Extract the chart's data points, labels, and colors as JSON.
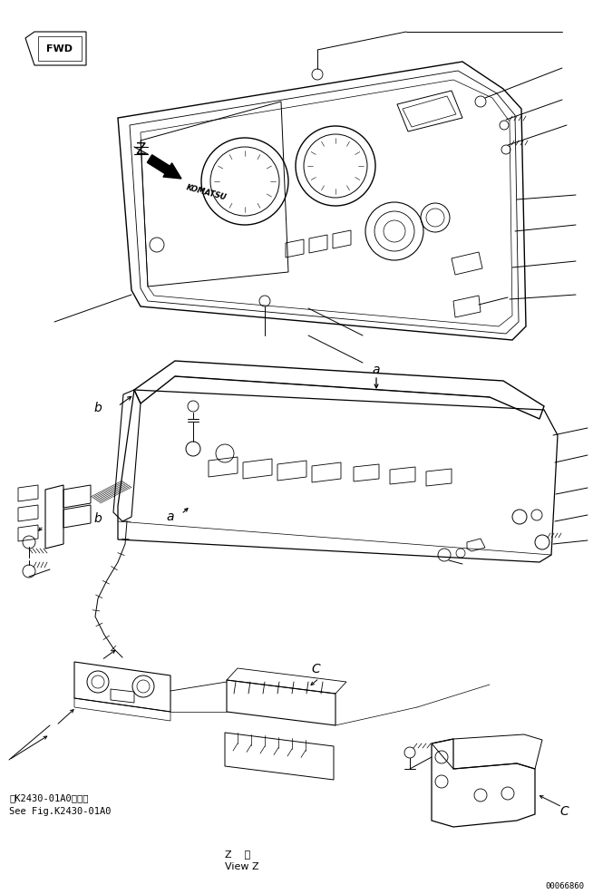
{
  "background_color": "#ffffff",
  "line_color": "#000000",
  "fig_width": 6.54,
  "fig_height": 9.86,
  "dpi": 100,
  "texts": {
    "fwd": "FWD",
    "z_label": "Z",
    "b1": "b",
    "b2": "b",
    "a1": "a",
    "a2": "a",
    "c1": "C",
    "c2": "C",
    "ref_jp": "第K2430-01A0図参照",
    "ref_en": "See Fig.K2430-01A0",
    "view_jp": "Z    視",
    "view_en": "View Z",
    "partnum": "00066860"
  }
}
